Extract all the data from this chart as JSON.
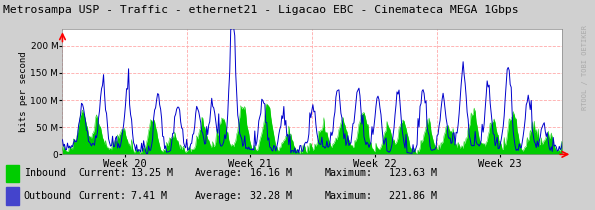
{
  "title": "Metrosampa USP - Traffic - ethernet21 - Ligacao EBC - Cinemateca MEGA 1Gbps",
  "ylabel": "bits per second",
  "x_labels": [
    "Week 20",
    "Week 21",
    "Week 22",
    "Week 23"
  ],
  "yticks": [
    0,
    50000000,
    100000000,
    150000000,
    200000000
  ],
  "ylim": [
    0,
    230000000
  ],
  "inbound_color": "#00cc00",
  "outbound_color": "#0000cc",
  "legend_inbound": "Inbound",
  "legend_outbound": "Outbound",
  "current_in": "13.25 M",
  "average_in": "16.16 M",
  "maximum_in": "123.63 M",
  "current_out": "7.41 M",
  "average_out": "32.28 M",
  "maximum_out": "221.86 M",
  "watermark": "RTOOL / TOBI OETIKER",
  "n_points": 500,
  "week_centers": [
    0.125,
    0.375,
    0.625,
    0.875
  ],
  "week_bounds": [
    0.0,
    0.25,
    0.5,
    0.75,
    1.0
  ]
}
